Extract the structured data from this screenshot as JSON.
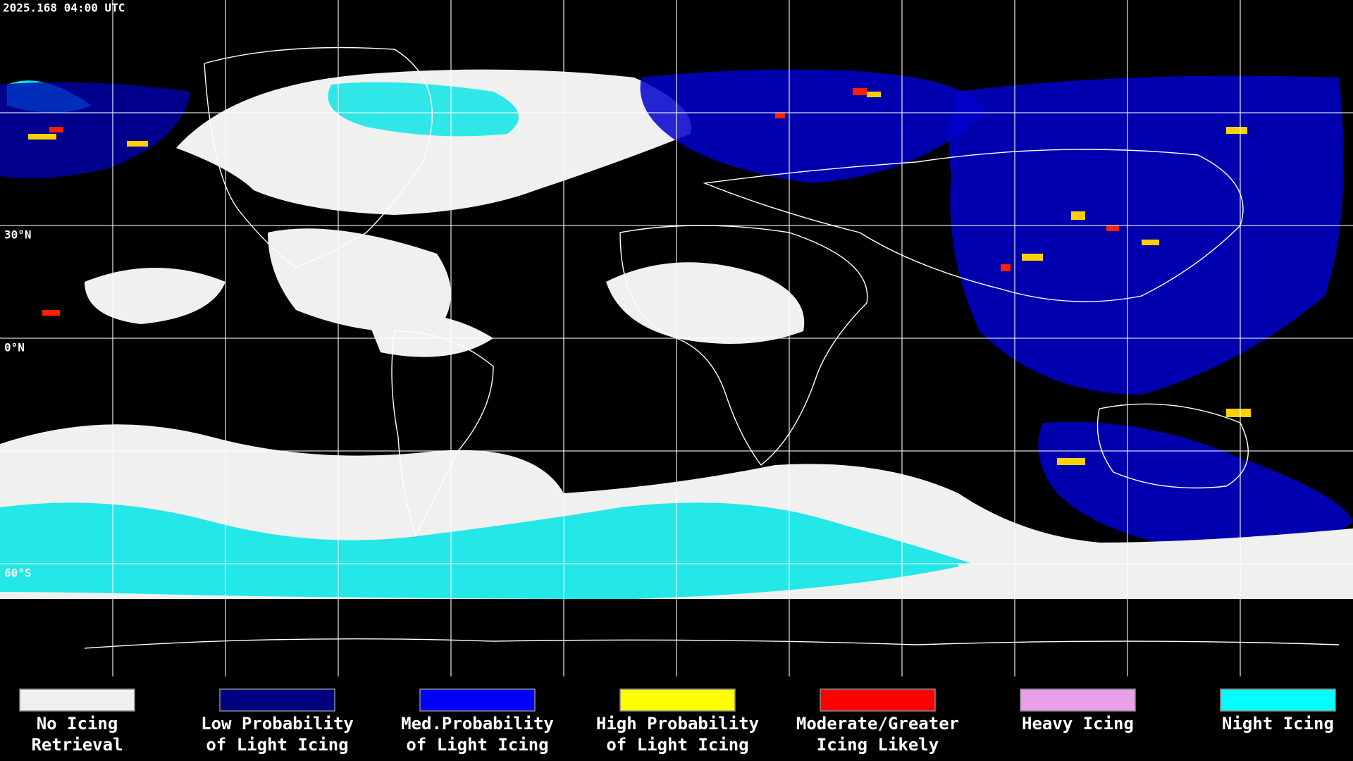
{
  "timestamp": "2025.168 04:00 UTC",
  "map": {
    "ylim": [
      -90,
      90
    ],
    "lat_labels": [
      {
        "value": 30,
        "label": "30°N"
      },
      {
        "value": 0,
        "label": "0°N"
      },
      {
        "value": -60,
        "label": "60°S"
      }
    ]
  },
  "legend": {
    "items": [
      {
        "color": "#f0f0f0",
        "lines": [
          "No Icing",
          "Retrieval"
        ]
      },
      {
        "color": "#000080",
        "lines": [
          "Low Probability",
          "of Light Icing"
        ]
      },
      {
        "color": "#0000ff",
        "lines": [
          "Med.Probability",
          "of Light Icing"
        ]
      },
      {
        "color": "#ffff00",
        "lines": [
          "High Probability",
          "of Light Icing"
        ]
      },
      {
        "color": "#ff0000",
        "lines": [
          "Moderate/Greater",
          "Icing Likely"
        ]
      },
      {
        "color": "#e8a0e8",
        "lines": [
          "Heavy Icing",
          ""
        ]
      },
      {
        "color": "#00ffff",
        "lines": [
          "Night Icing",
          ""
        ]
      }
    ]
  }
}
